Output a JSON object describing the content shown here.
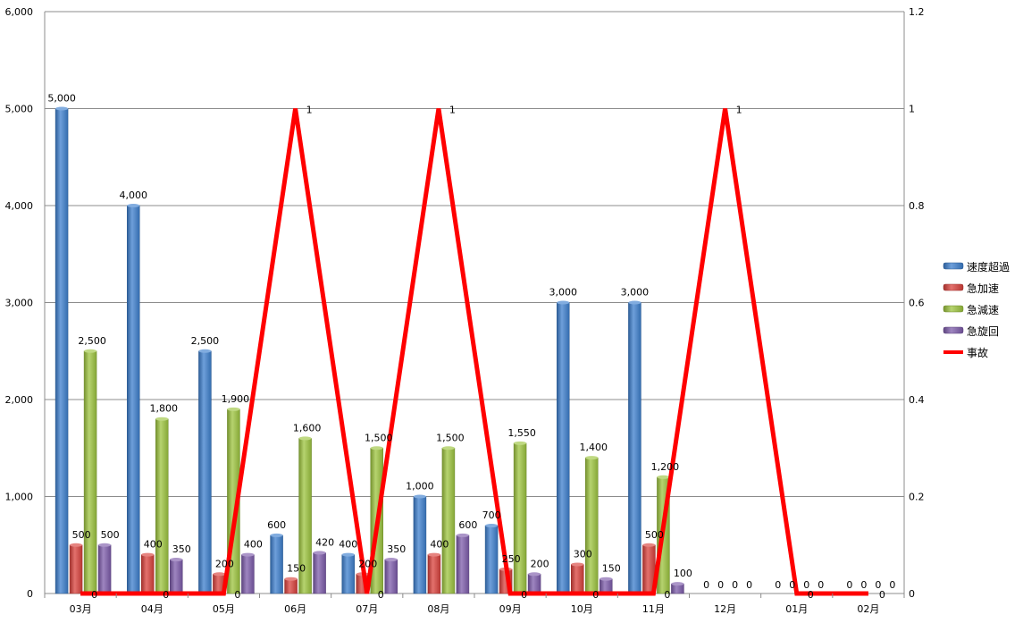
{
  "chart_data": {
    "type": "bar",
    "title": "",
    "categories": [
      "03月",
      "04月",
      "05月",
      "06月",
      "07月",
      "08月",
      "09月",
      "10月",
      "11月",
      "12月",
      "01月",
      "02月"
    ],
    "series": [
      {
        "name": "速度超過",
        "type": "bar",
        "axis": "left",
        "color": "#3d7fcd",
        "values": [
          5000,
          4000,
          2500,
          600,
          400,
          1000,
          700,
          3000,
          3000,
          0,
          0,
          0
        ]
      },
      {
        "name": "急加速",
        "type": "bar",
        "axis": "left",
        "color": "#d9413c",
        "values": [
          500,
          400,
          200,
          150,
          200,
          400,
          250,
          300,
          500,
          0,
          0,
          0
        ]
      },
      {
        "name": "急減速",
        "type": "bar",
        "axis": "left",
        "color": "#9dc43f",
        "values": [
          2500,
          1800,
          1900,
          1600,
          1500,
          1500,
          1550,
          1400,
          1200,
          0,
          0,
          0
        ]
      },
      {
        "name": "急旋回",
        "type": "bar",
        "axis": "left",
        "color": "#7d5cab",
        "values": [
          500,
          350,
          400,
          420,
          350,
          600,
          200,
          150,
          100,
          0,
          0,
          0
        ]
      },
      {
        "name": "事故",
        "type": "line",
        "axis": "right",
        "color": "#ff0000",
        "values": [
          0,
          0,
          0,
          1,
          0,
          1,
          0,
          0,
          0,
          1,
          0,
          0
        ]
      }
    ],
    "left_axis": {
      "ylim": [
        0,
        6000
      ],
      "ticks": [
        "0",
        "1,000",
        "2,000",
        "3,000",
        "4,000",
        "5,000",
        "6,000"
      ]
    },
    "right_axis": {
      "ylim": [
        0,
        1.2
      ],
      "ticks": [
        "0",
        "0.2",
        "0.4",
        "0.6",
        "0.8",
        "1",
        "1.2"
      ]
    },
    "data_labels": {
      "速度超過": [
        "5,000",
        "4,000",
        "2,500",
        "600",
        "400",
        "1,000",
        "700",
        "3,000",
        "3,000",
        "0",
        "0",
        "0"
      ],
      "急加速": [
        "500",
        "400",
        "200",
        "150",
        "200",
        "400",
        "250",
        "300",
        "500",
        "0",
        "0",
        "0"
      ],
      "急減速": [
        "2,500",
        "1,800",
        "1,900",
        "1,600",
        "1,500",
        "1,500",
        "1,550",
        "1,400",
        "1,200",
        "0",
        "0",
        "0"
      ],
      "急旋回": [
        "500",
        "350",
        "400",
        "420",
        "350",
        "600",
        "200",
        "150",
        "100",
        "0",
        "0",
        "0"
      ],
      "事故": [
        "0",
        "0",
        "0",
        "1",
        "0",
        "1",
        "0",
        "0",
        "0",
        "1",
        "0",
        "0"
      ]
    },
    "grid": true,
    "legend_position": "right"
  }
}
